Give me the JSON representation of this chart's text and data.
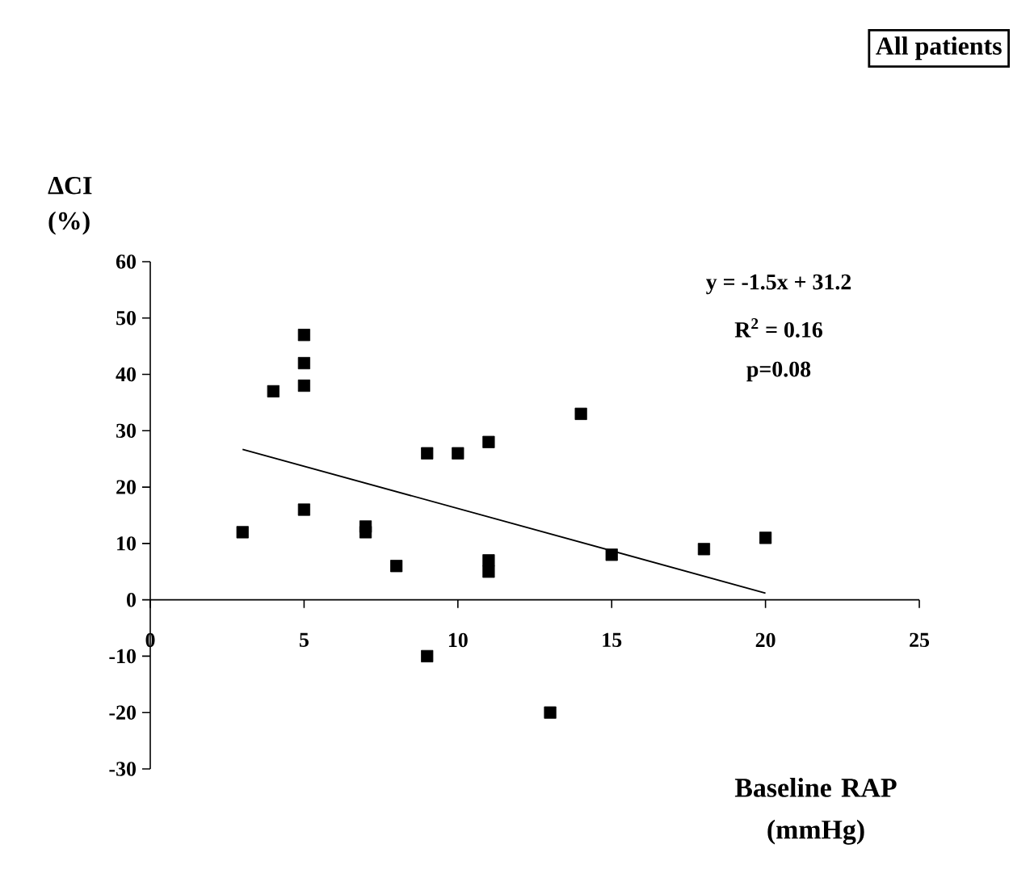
{
  "chart_data": {
    "type": "scatter",
    "title": "All patients",
    "xlabel": "Baseline RAP (mmHg)",
    "ylabel": "ΔCI (%)",
    "annotations": [
      "y = -1.5x + 31.2",
      "R$^{2}$ = 0.16",
      "p=0.08"
    ],
    "series": [
      {
        "color": "#000000",
        "marker": "square",
        "x": [
          3,
          4,
          5,
          5,
          5,
          5,
          7,
          7,
          8,
          9,
          9,
          10,
          11,
          11,
          11,
          13,
          14,
          15,
          18,
          20
        ],
        "values": [
          12,
          37,
          47,
          42,
          38,
          16,
          13,
          12,
          6,
          26,
          -10,
          26,
          28,
          7,
          5,
          -20,
          33,
          8,
          9,
          11
        ]
      },
      {
        "type": "line",
        "color": "#000000",
        "marker": "none",
        "x": [
          3,
          20
        ],
        "values": [
          26.7,
          1.2
        ]
      }
    ],
    "xlim": [
      0,
      25
    ],
    "ylim": [
      -30,
      60
    ],
    "xticks": [
      0,
      5,
      10,
      15,
      20,
      25
    ],
    "yticks": [
      -30,
      -20,
      -10,
      0,
      10,
      20,
      30,
      40,
      50,
      60
    ],
    "grid": false
  }
}
